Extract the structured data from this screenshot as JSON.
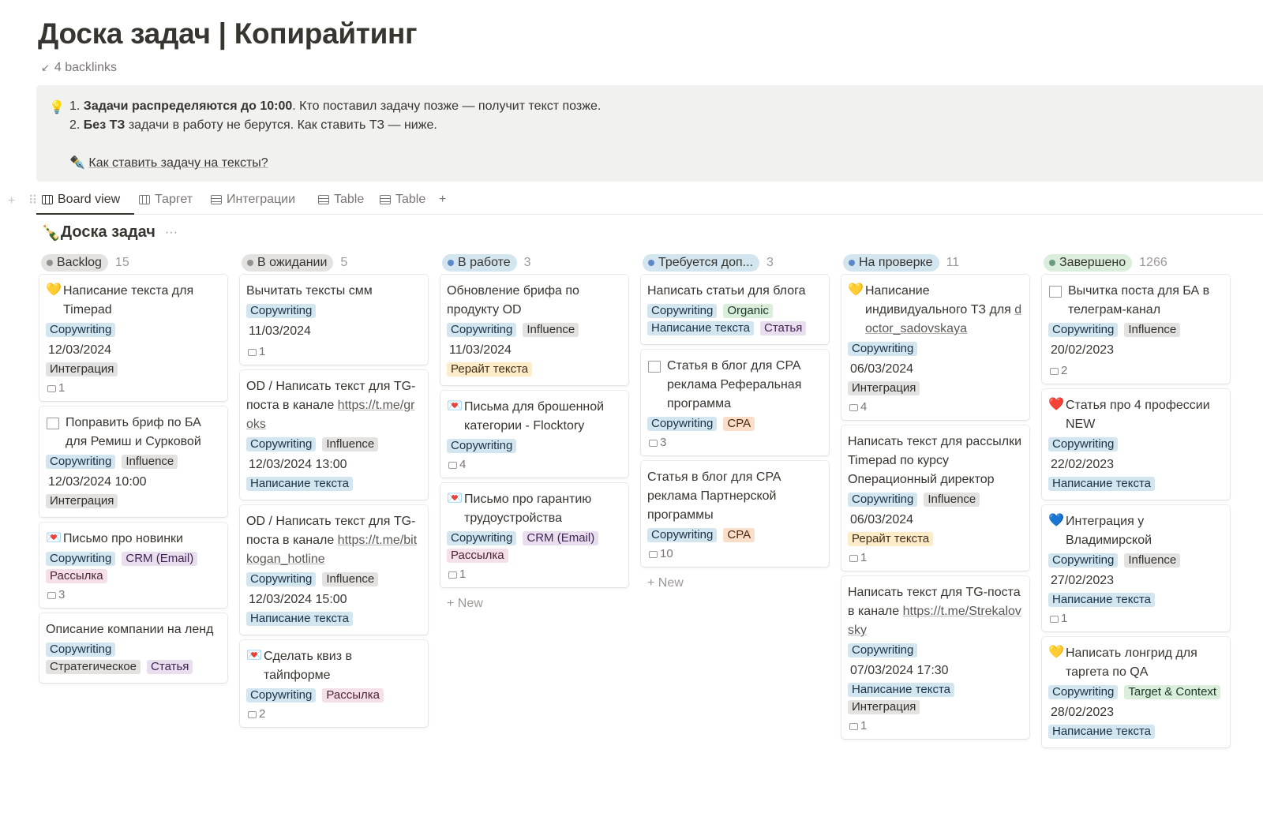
{
  "page": {
    "title": "Доска задач | Копирайтинг",
    "backlinks_arrow": "↙",
    "backlinks": "4 backlinks"
  },
  "callout": {
    "icon": "💡",
    "line1_num": "1. ",
    "line1_bold": "Задачи распределяются до 10:00",
    "line1_rest": ". Кто поставил задачу позже — получит текст позже.",
    "line2_num": "2. ",
    "line2_bold": "Без ТЗ",
    "line2_rest": " задачи в работу не берутся. Как ставить ТЗ — ниже.",
    "link_icon": "✒️",
    "link_text": "Как ставить задачу на тексты?"
  },
  "tabs": {
    "handles": "+ ⠿",
    "items": [
      "Board view",
      "Таргет",
      "Интеграции",
      "Table",
      "Table"
    ],
    "add": "+"
  },
  "database": {
    "icon": "🍾",
    "title": "Доска задач",
    "more": "···"
  },
  "colors": {
    "blue_tag": "#d3e5ef",
    "gray_tag": "#e3e2e0",
    "green_tag": "#dbeddb",
    "purple_tag": "#e8deee",
    "pink_tag": "#f5e0e9",
    "orange_tag": "#fadec9",
    "yellow_tag": "#fdecc8"
  },
  "columns": [
    {
      "name": "Backlog",
      "count": "15",
      "dot": "#91918e",
      "bg": "#e3e2e0",
      "cards": [
        {
          "icon": "💛",
          "title": "Написание текста для Timepad",
          "tags": [
            [
              "Copywriting",
              "blue"
            ]
          ],
          "date": "12/03/2024",
          "tags2": [
            [
              "Интеграция",
              "gray"
            ]
          ],
          "comments": "1"
        },
        {
          "icon": "doc",
          "title": "Поправить бриф по БА для Ремиш и Сурковой",
          "tags": [
            [
              "Copywriting",
              "blue"
            ],
            [
              "Influence",
              "gray"
            ]
          ],
          "date": "12/03/2024 10:00",
          "tags2": [
            [
              "Интеграция",
              "gray"
            ]
          ],
          "comments": ""
        },
        {
          "icon": "💌",
          "title": "Письмо про новинки",
          "tags": [
            [
              "Copywriting",
              "blue"
            ],
            [
              "CRM (Email)",
              "purple"
            ]
          ],
          "date": "",
          "tags2": [
            [
              "Рассылка",
              "pink"
            ]
          ],
          "comments": "3"
        },
        {
          "icon": "",
          "title": "Описание компании на ленд",
          "tags": [
            [
              "Copywriting",
              "blue"
            ]
          ],
          "date": "",
          "tags2": [
            [
              "Стратегическое",
              "gray"
            ],
            [
              "Статья",
              "purple"
            ]
          ],
          "comments": ""
        }
      ]
    },
    {
      "name": "В ожидании",
      "count": "5",
      "dot": "#91918e",
      "bg": "#e3e2e0",
      "cards": [
        {
          "icon": "",
          "title": "Вычитать тексты смм",
          "tags": [
            [
              "Copywriting",
              "blue"
            ]
          ],
          "date": "11/03/2024",
          "tags2": [],
          "comments": "1"
        },
        {
          "icon": "",
          "title": "OD / Написать текст для TG-поста в канале",
          "link": "https://t.me/groks",
          "tags": [
            [
              "Copywriting",
              "blue"
            ],
            [
              "Influence",
              "gray"
            ]
          ],
          "date": "12/03/2024 13:00",
          "tags2": [
            [
              "Написание текста",
              "blue"
            ]
          ],
          "comments": ""
        },
        {
          "icon": "",
          "title": "OD / Написать текст для TG-поста в канале",
          "link": "https://t.me/bitkogan_hotline",
          "tags": [
            [
              "Copywriting",
              "blue"
            ],
            [
              "Influence",
              "gray"
            ]
          ],
          "date": "12/03/2024 15:00",
          "tags2": [
            [
              "Написание текста",
              "blue"
            ]
          ],
          "comments": ""
        },
        {
          "icon": "💌",
          "title": "Сделать квиз в тайпформе",
          "tags": [
            [
              "Copywriting",
              "blue"
            ],
            [
              "Рассылка",
              "pink"
            ]
          ],
          "date": "",
          "tags2": [],
          "comments": "2"
        }
      ]
    },
    {
      "name": "В работе",
      "count": "3",
      "dot": "#5e87c9",
      "bg": "#d3e5ef",
      "cards": [
        {
          "icon": "",
          "title": "Обновление брифа по продукту OD",
          "tags": [
            [
              "Copywriting",
              "blue"
            ],
            [
              "Influence",
              "gray"
            ]
          ],
          "date": "11/03/2024",
          "tags2": [
            [
              "Рерайт текста",
              "yellow"
            ]
          ],
          "comments": ""
        },
        {
          "icon": "💌",
          "title": "Письма для брошенной категории - Flocktory",
          "tags": [
            [
              "Copywriting",
              "blue"
            ]
          ],
          "date": "",
          "tags2": [],
          "comments": "4"
        },
        {
          "icon": "💌",
          "title": "Письмо про гарантию трудоустройства",
          "tags": [
            [
              "Copywriting",
              "blue"
            ],
            [
              "CRM (Email)",
              "purple"
            ]
          ],
          "date": "",
          "tags2": [
            [
              "Рассылка",
              "pink"
            ]
          ],
          "comments": "1"
        }
      ],
      "new": "+ New"
    },
    {
      "name": "Требуется доп...",
      "count": "3",
      "dot": "#5e87c9",
      "bg": "#d3e5ef",
      "cards": [
        {
          "icon": "",
          "title": "Написать статьи для блога",
          "tags": [
            [
              "Copywriting",
              "blue"
            ],
            [
              "Organic",
              "green"
            ],
            [
              "Написание текста",
              "blue"
            ],
            [
              "Статья",
              "purple"
            ]
          ],
          "date": "",
          "tags2": [],
          "comments": ""
        },
        {
          "icon": "doc",
          "title": "Статья в блог для CPA реклама Реферальная программа",
          "tags": [
            [
              "Copywriting",
              "blue"
            ],
            [
              "CPA",
              "orange"
            ]
          ],
          "date": "",
          "tags2": [],
          "comments": "3"
        },
        {
          "icon": "",
          "title": "Статья в блог для CPA реклама Партнерской программы",
          "tags": [
            [
              "Copywriting",
              "blue"
            ],
            [
              "CPA",
              "orange"
            ]
          ],
          "date": "",
          "tags2": [],
          "comments": "10"
        }
      ],
      "new": "+ New"
    },
    {
      "name": "На проверке",
      "count": "11",
      "dot": "#5e87c9",
      "bg": "#d3e5ef",
      "cards": [
        {
          "icon": "💛",
          "title": "Написание индивидуального ТЗ для ",
          "link": "doctor_sadovskaya",
          "tags": [
            [
              "Copywriting",
              "blue"
            ]
          ],
          "date": "06/03/2024",
          "tags2": [
            [
              "Интеграция",
              "gray"
            ]
          ],
          "comments": "4"
        },
        {
          "icon": "",
          "title": "Написать текст для рассылки Timepad по курсу Операционный директор",
          "tags": [
            [
              "Copywriting",
              "blue"
            ],
            [
              "Influence",
              "gray"
            ]
          ],
          "date": "06/03/2024",
          "tags2": [
            [
              "Рерайт текста",
              "yellow"
            ]
          ],
          "comments": "1"
        },
        {
          "icon": "",
          "title": "Написать текст для TG-поста в канале",
          "link": "https://t.me/Strekalovsky",
          "tags": [
            [
              "Copywriting",
              "blue"
            ]
          ],
          "date": "07/03/2024 17:30",
          "tags2": [
            [
              "Написание текста",
              "blue"
            ],
            [
              "Интеграция",
              "gray"
            ]
          ],
          "comments": "1"
        }
      ]
    },
    {
      "name": "Завершено",
      "count": "1266",
      "dot": "#6c9b7d",
      "bg": "#dbeddb",
      "cards": [
        {
          "icon": "doc",
          "title": "Вычитка поста для БА в телеграм-канал",
          "tags": [
            [
              "Copywriting",
              "blue"
            ],
            [
              "Influence",
              "gray"
            ]
          ],
          "date": "20/02/2023",
          "tags2": [],
          "comments": "2"
        },
        {
          "icon": "❤️",
          "title": "Статья про 4 профессии NEW",
          "tags": [
            [
              "Copywriting",
              "blue"
            ]
          ],
          "date": "22/02/2023",
          "tags2": [
            [
              "Написание текста",
              "blue"
            ]
          ],
          "comments": ""
        },
        {
          "icon": "💙",
          "title": "Интеграция у Владимирской",
          "tags": [
            [
              "Copywriting",
              "blue"
            ],
            [
              "Influence",
              "gray"
            ]
          ],
          "date": "27/02/2023",
          "tags2": [
            [
              "Написание текста",
              "blue"
            ]
          ],
          "comments": "1"
        },
        {
          "icon": "💛",
          "title": "Написать лонгрид для таргета по QA",
          "tags": [
            [
              "Copywriting",
              "blue"
            ],
            [
              "Target & Context",
              "green"
            ]
          ],
          "date": "28/02/2023",
          "tags2": [
            [
              "Написание текста",
              "blue"
            ]
          ],
          "comments": ""
        }
      ]
    }
  ]
}
